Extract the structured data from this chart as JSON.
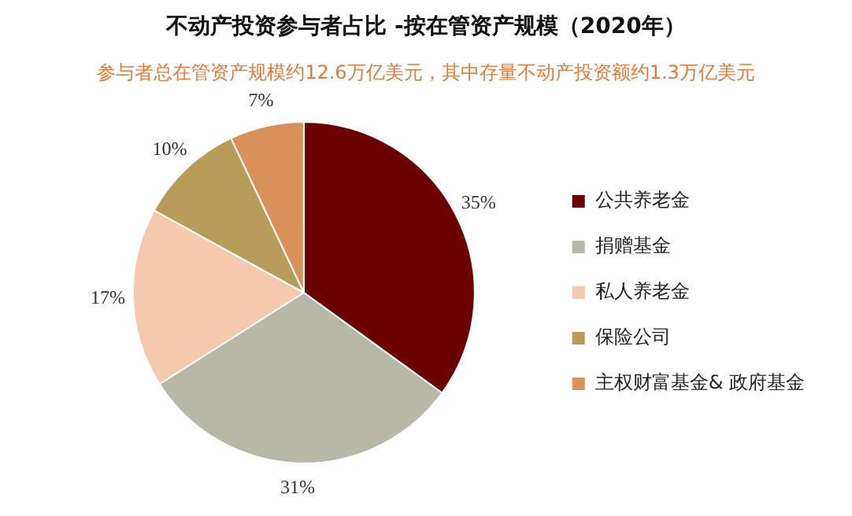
{
  "chart_data": {
    "type": "pie",
    "title": "不动产投资参与者占比 -按在管资产规模（2020年）",
    "subtitle": "参与者总在管资产规模约12.6万亿美元，其中存量不动产投资额约1.3万亿美元",
    "categories": [
      "公共养老金",
      "捐赠基金",
      "私人养老金",
      "保险公司",
      "主权财富基金& 政府基金"
    ],
    "values": [
      35,
      31,
      17,
      10,
      7
    ],
    "colors": [
      "#6b0000",
      "#b8b8a6",
      "#f5c9ad",
      "#b89c5a",
      "#d9915a"
    ],
    "value_labels": [
      "35%",
      "31%",
      "17%",
      "10%",
      "7%"
    ],
    "legend": "right"
  }
}
